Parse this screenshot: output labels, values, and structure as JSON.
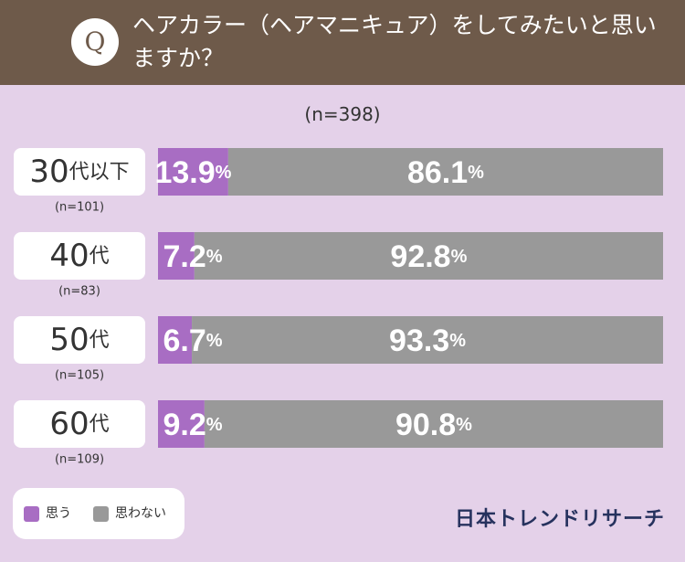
{
  "question": {
    "badge": "Q",
    "text": "ヘアカラー（ヘアマニキュア）をしてみたいと思いますか？"
  },
  "total_n": "(n=398)",
  "legend": {
    "yes": "思う",
    "no": "思わない"
  },
  "brand": "日本トレンドリサーチ",
  "colors": {
    "header": "#6e5a4a",
    "background": "#e4d1e9",
    "yes": "#a86dc3",
    "no": "#999999",
    "brand": "#26325e"
  },
  "chart_data": {
    "type": "bar",
    "orientation": "horizontal",
    "stacked": true,
    "percent_unit": "%",
    "categories": [
      "30代以下",
      "40代",
      "50代",
      "60代"
    ],
    "sample_sizes": [
      "(n=101)",
      "(n=83)",
      "(n=105)",
      "(n=109)"
    ],
    "series": [
      {
        "name": "思う",
        "values": [
          13.9,
          7.2,
          6.7,
          9.2
        ]
      },
      {
        "name": "思わない",
        "values": [
          86.1,
          92.8,
          93.3,
          90.8
        ]
      }
    ],
    "xlim": [
      0,
      100
    ]
  }
}
